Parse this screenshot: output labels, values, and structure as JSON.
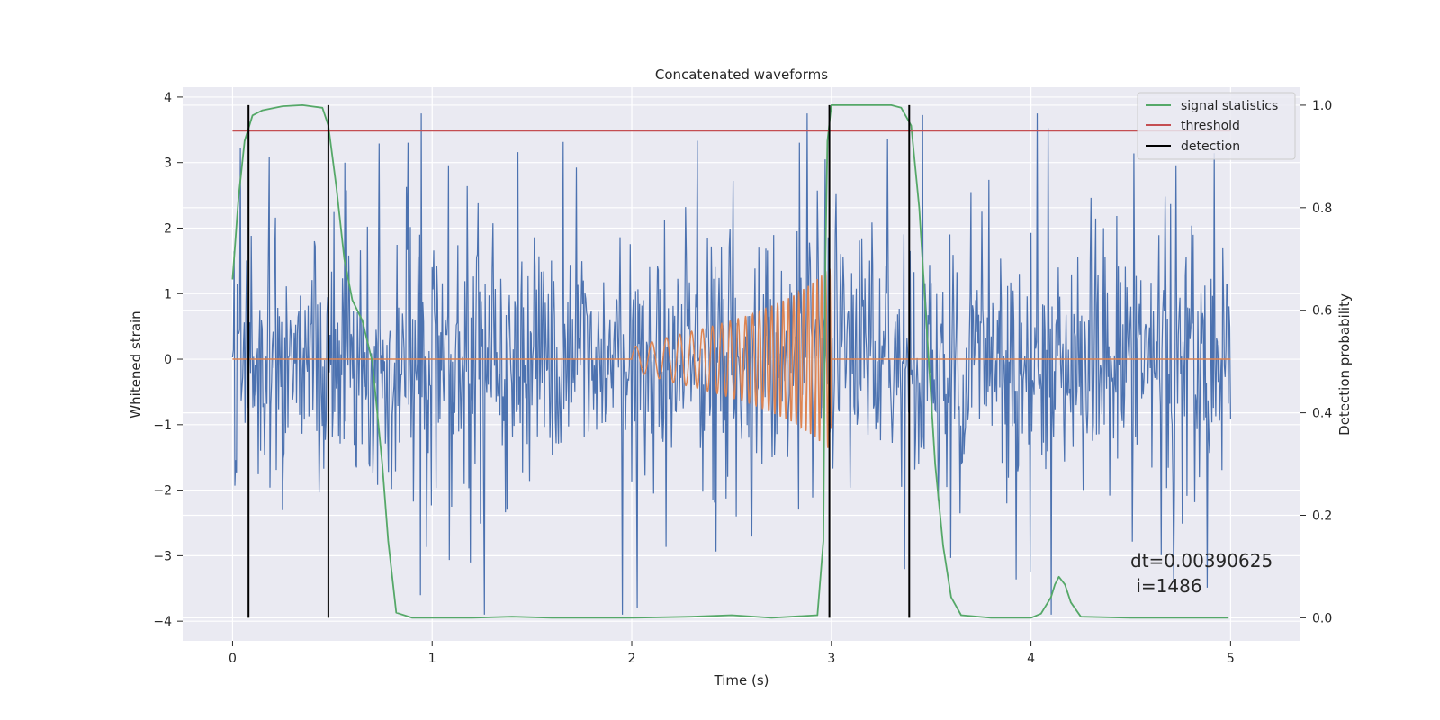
{
  "chart_data": {
    "type": "line",
    "title": "Concatenated waveforms",
    "xlabel": "Time (s)",
    "ylabel": "Whitened strain",
    "y2label": "Detection probability",
    "xlim": [
      -0.25,
      5.35
    ],
    "ylim": [
      -4.3,
      4.15
    ],
    "y2lim": [
      -0.045,
      1.035
    ],
    "xticks": [
      0,
      1,
      2,
      3,
      4,
      5
    ],
    "yticks": [
      -4,
      -3,
      -2,
      -1,
      0,
      1,
      2,
      3,
      4
    ],
    "y2ticks": [
      0.0,
      0.2,
      0.4,
      0.6,
      0.8,
      1.0
    ],
    "grid": true,
    "legend_position": "top-right",
    "legend": [
      "signal statistics",
      "threshold",
      "detection"
    ],
    "annotation": {
      "line1": "dt=0.00390625",
      "line2": " i=1486"
    },
    "colors": {
      "noise": "#4c72b0",
      "injection": "#dd8452",
      "statistic": "#55a868",
      "threshold": "#c44e52",
      "detection": "#000000",
      "axes_bg": "#eaeaf2",
      "grid": "#ffffff"
    },
    "series": [
      {
        "description": "whitened strain",
        "axis": "left",
        "x_range": [
          0,
          5
        ],
        "envelope": {
          "core_amplitude": 0.9,
          "max_spike": 3.75,
          "min_spike": -3.9
        }
      },
      {
        "description": "injected chirp",
        "axis": "left",
        "x": [
          2.0,
          2.2,
          2.4,
          2.6,
          2.8,
          2.9,
          3.0
        ],
        "amplitude": [
          0.18,
          0.35,
          0.5,
          0.68,
          0.95,
          1.15,
          1.4
        ],
        "outside_value": 0
      },
      {
        "name": "signal statistics",
        "axis": "right",
        "x": [
          0.0,
          0.03,
          0.06,
          0.1,
          0.15,
          0.25,
          0.35,
          0.45,
          0.48,
          0.52,
          0.56,
          0.6,
          0.65,
          0.7,
          0.75,
          0.78,
          0.82,
          0.9,
          1.2,
          1.4,
          1.6,
          2.0,
          2.3,
          2.5,
          2.7,
          2.93,
          2.96,
          2.97,
          2.98,
          3.0,
          3.05,
          3.3,
          3.35,
          3.4,
          3.44,
          3.48,
          3.52,
          3.56,
          3.6,
          3.65,
          3.8,
          4.0,
          4.05,
          4.1,
          4.12,
          4.14,
          4.17,
          4.2,
          4.25,
          4.5,
          4.99
        ],
        "values": [
          0.66,
          0.82,
          0.93,
          0.98,
          0.99,
          0.998,
          1.0,
          0.995,
          0.96,
          0.84,
          0.7,
          0.62,
          0.58,
          0.5,
          0.3,
          0.15,
          0.01,
          0.0,
          0.0,
          0.002,
          0.0,
          0.0,
          0.002,
          0.005,
          0.0,
          0.005,
          0.15,
          0.7,
          0.93,
          1.0,
          1.0,
          1.0,
          0.995,
          0.96,
          0.8,
          0.55,
          0.3,
          0.14,
          0.04,
          0.005,
          0.0,
          0.0,
          0.008,
          0.04,
          0.065,
          0.08,
          0.065,
          0.03,
          0.002,
          0.0,
          0.0
        ]
      },
      {
        "name": "threshold",
        "axis": "right",
        "x": [
          0,
          5
        ],
        "values": [
          0.95,
          0.95
        ]
      },
      {
        "name": "detection",
        "axis": "right",
        "x": [
          0.08,
          0.48,
          2.99,
          3.39
        ],
        "y_range": [
          0.0,
          1.0
        ]
      }
    ]
  }
}
